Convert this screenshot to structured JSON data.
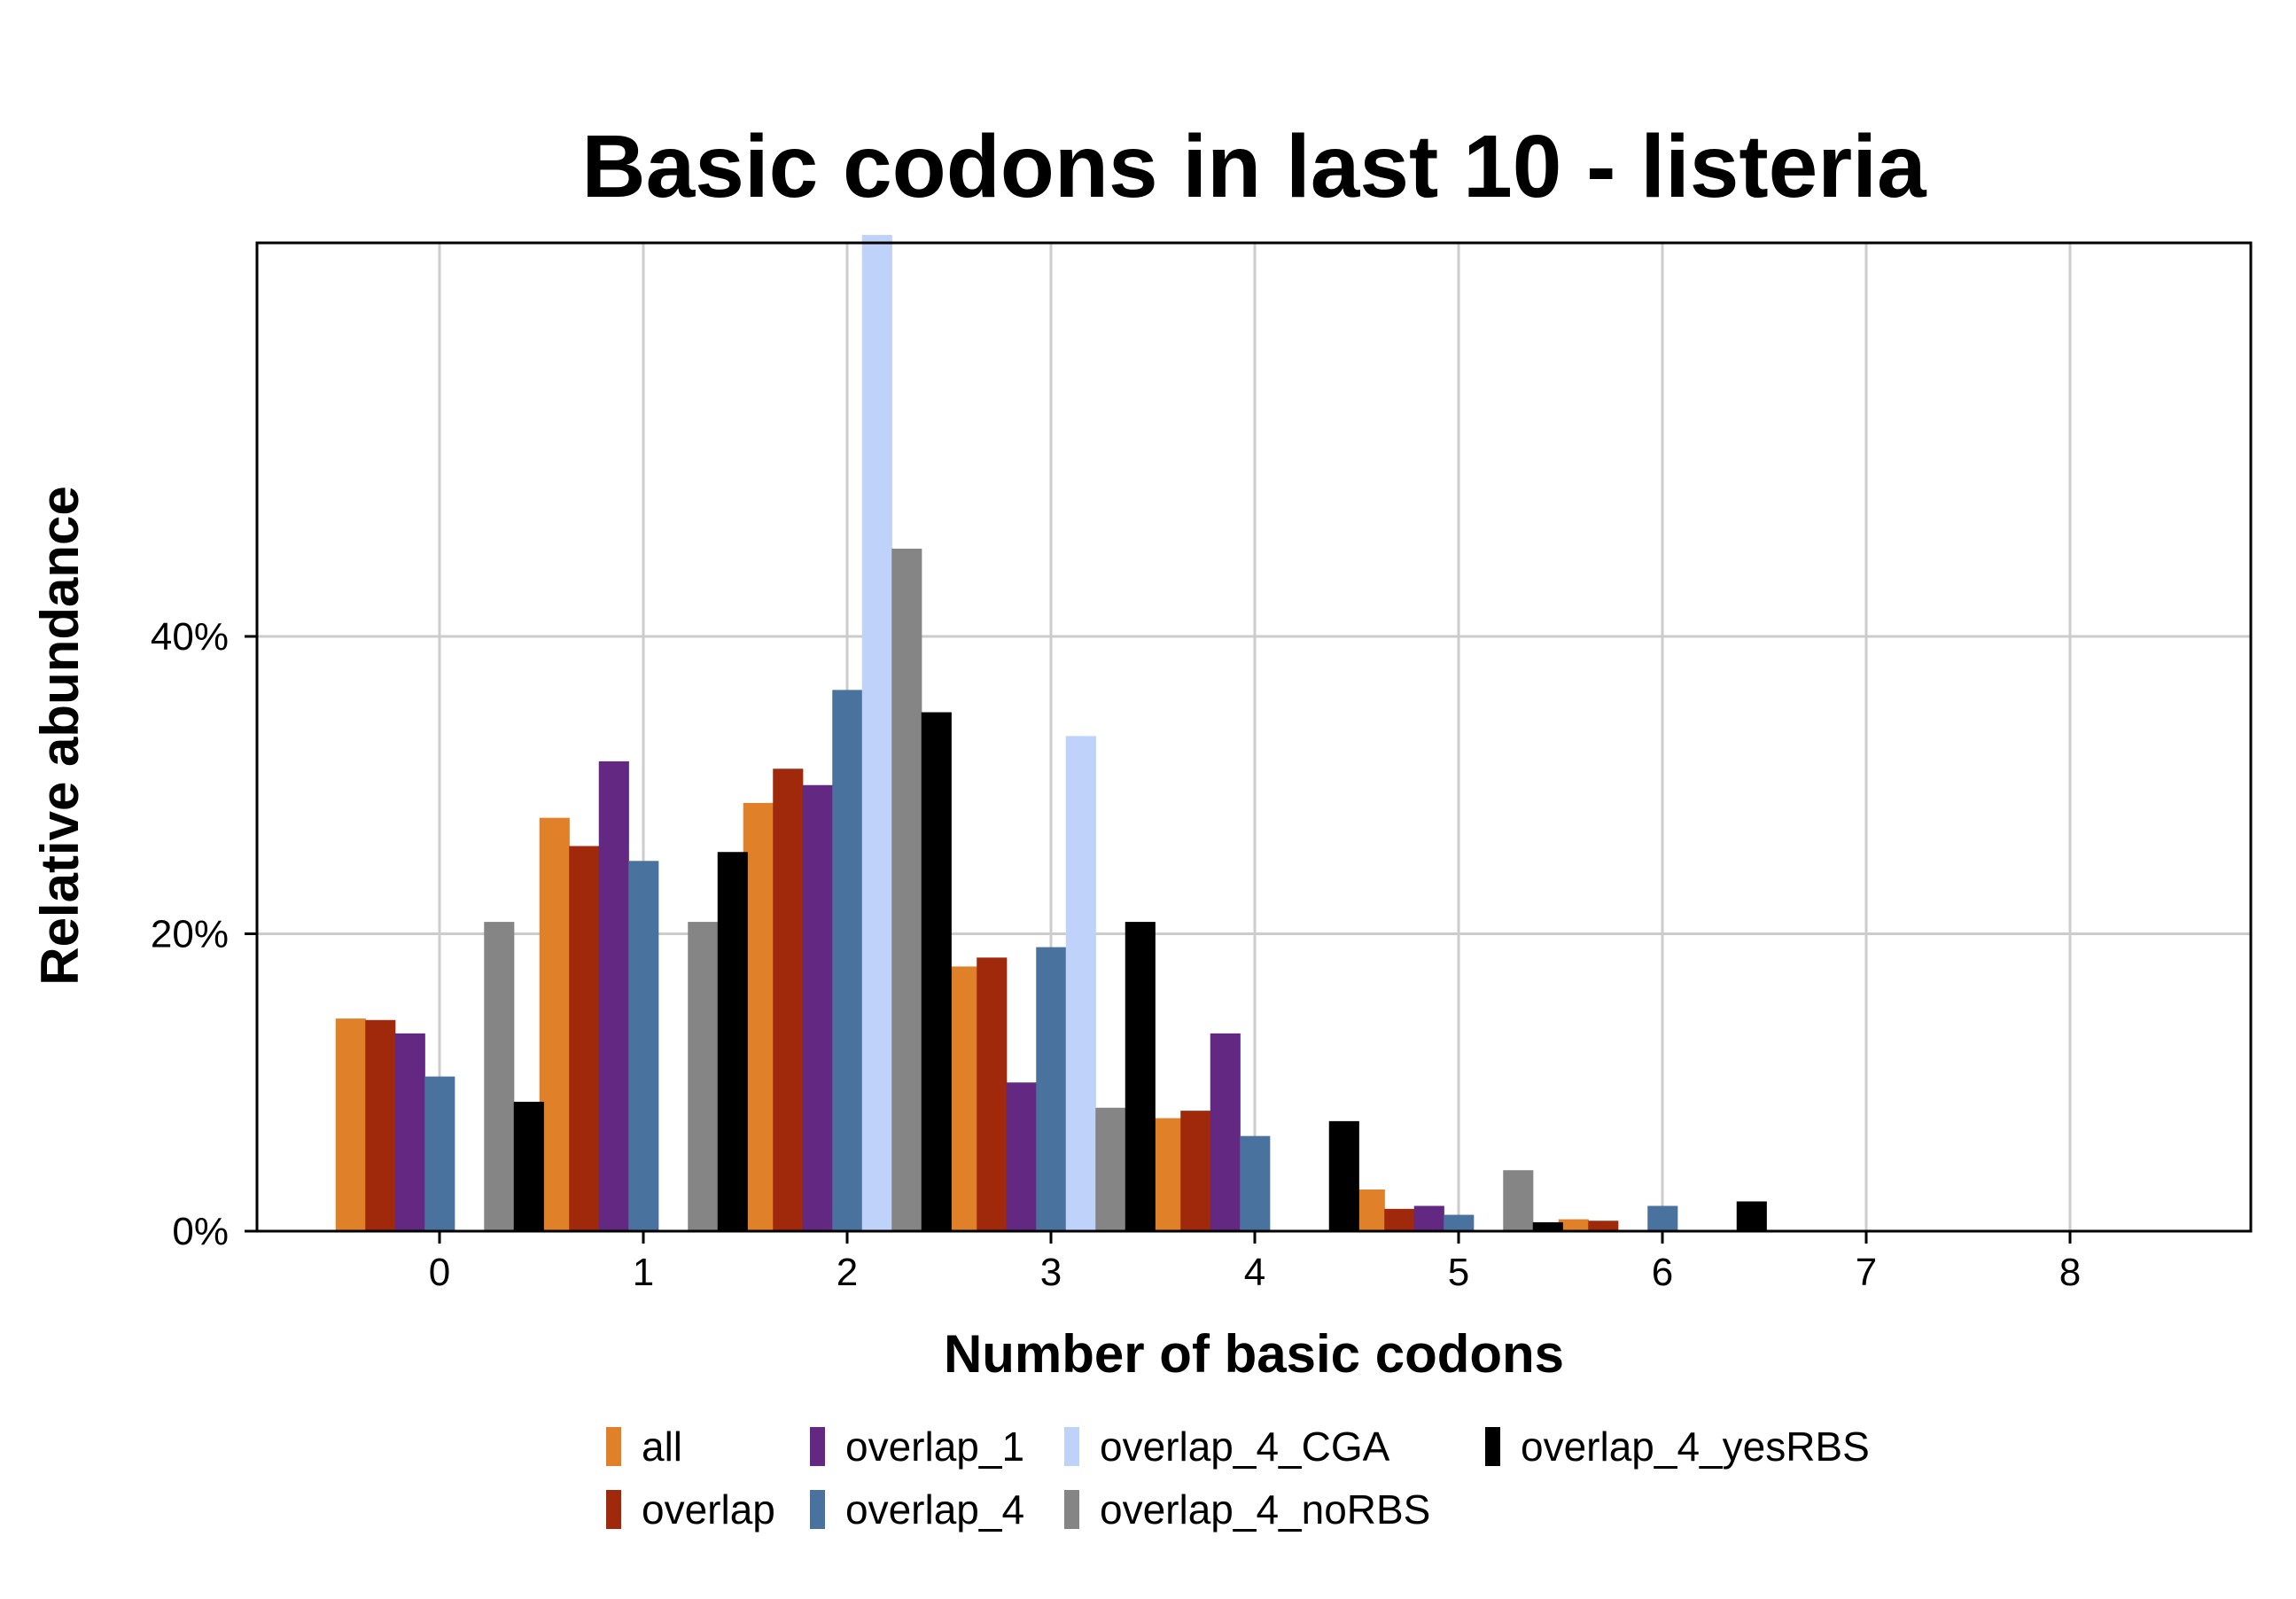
{
  "chart_data": {
    "type": "bar",
    "title": "Basic codons in last 10 - listeria",
    "xlabel": "Number of basic codons",
    "ylabel": "Relative abundance",
    "categories": [
      "0",
      "1",
      "2",
      "3",
      "4",
      "5",
      "6",
      "7",
      "8"
    ],
    "yticks": [
      "0%",
      "20%",
      "40%"
    ],
    "ylim": [
      0,
      67
    ],
    "grid": true,
    "legend_position": "bottom",
    "series": [
      {
        "name": "all",
        "color": "#E0812A",
        "values": [
          14.3,
          27.8,
          28.8,
          17.8,
          7.6,
          2.8,
          0.8,
          null,
          null
        ]
      },
      {
        "name": "overlap",
        "color": "#A0290B",
        "values": [
          14.2,
          25.9,
          31.1,
          18.4,
          8.1,
          1.5,
          0.7,
          null,
          null
        ]
      },
      {
        "name": "overlap_1",
        "color": "#632982",
        "values": [
          13.3,
          31.6,
          30.0,
          10.0,
          13.3,
          1.7,
          null,
          null,
          null
        ]
      },
      {
        "name": "overlap_4",
        "color": "#4A729E",
        "values": [
          10.4,
          24.9,
          36.4,
          19.1,
          6.4,
          1.1,
          1.7,
          null,
          null
        ]
      },
      {
        "name": "overlap_4_CGA",
        "color": "#BFD2FA",
        "values": [
          null,
          null,
          67.0,
          33.3,
          null,
          null,
          null,
          null,
          null
        ]
      },
      {
        "name": "overlap_4_noRBS",
        "color": "#858585",
        "values": [
          20.8,
          20.8,
          45.9,
          8.3,
          null,
          4.1,
          null,
          null,
          null
        ]
      },
      {
        "name": "overlap_4_yesRBS",
        "color": "#000000",
        "values": [
          8.7,
          25.5,
          34.9,
          20.8,
          7.4,
          0.6,
          2.0,
          null,
          null
        ]
      }
    ]
  }
}
